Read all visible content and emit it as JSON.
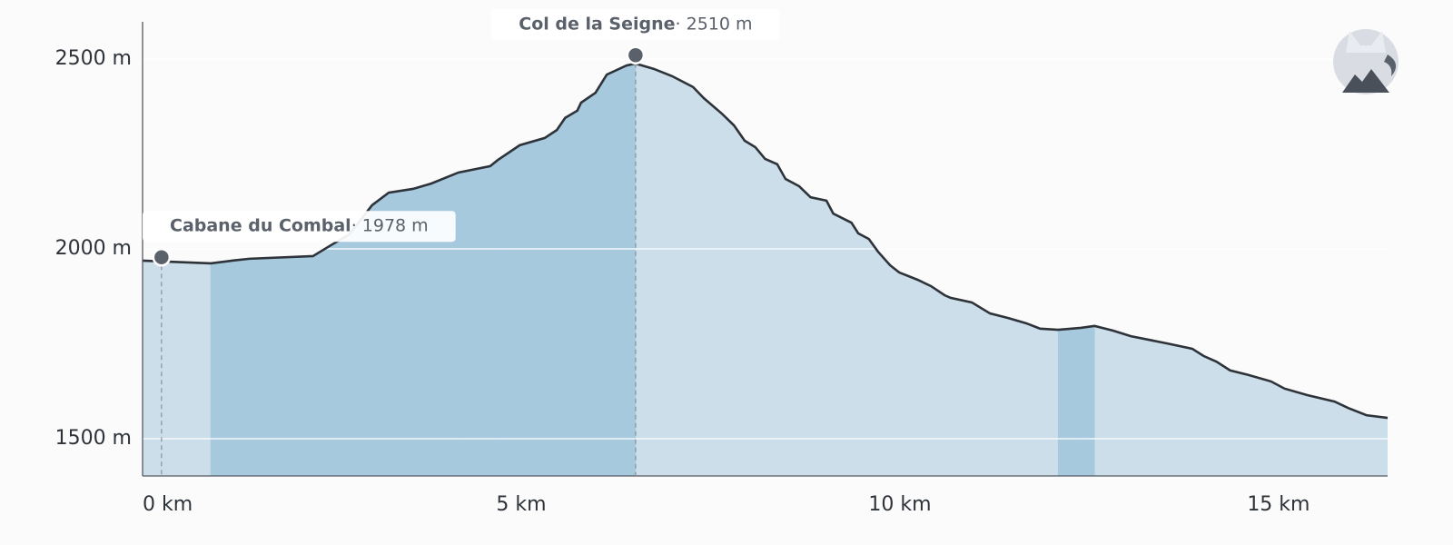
{
  "chart_data": {
    "type": "area",
    "x": [
      0,
      0.9,
      1.18,
      1.41,
      2.25,
      2.49,
      2.73,
      3.03,
      3.25,
      3.57,
      3.81,
      4.17,
      4.59,
      4.69,
      4.98,
      5.31,
      5.47,
      5.58,
      5.74,
      5.79,
      5.98,
      6.13,
      6.39,
      6.51,
      6.75,
      6.99,
      7.27,
      7.41,
      7.65,
      7.81,
      7.95,
      8.09,
      8.22,
      8.38,
      8.49,
      8.67,
      8.82,
      9.03,
      9.12,
      9.36,
      9.45,
      9.59,
      9.71,
      9.87,
      9.99,
      10.23,
      10.41,
      10.59,
      10.67,
      10.95,
      11.19,
      11.43,
      11.67,
      11.85,
      12.09,
      12.39,
      12.57,
      12.81,
      13.05,
      13.53,
      13.86,
      14.01,
      14.18,
      14.36,
      14.6,
      14.9,
      15.08,
      15.38,
      15.74,
      15.92,
      16.16,
      16.44
    ],
    "values": [
      1969,
      1962,
      1969,
      1974,
      1981,
      2010,
      2038,
      2115,
      2148,
      2158,
      2172,
      2201,
      2218,
      2234,
      2273,
      2292,
      2313,
      2345,
      2364,
      2385,
      2411,
      2459,
      2483,
      2488,
      2474,
      2455,
      2426,
      2397,
      2356,
      2325,
      2285,
      2268,
      2237,
      2223,
      2184,
      2165,
      2136,
      2127,
      2093,
      2069,
      2041,
      2026,
      1993,
      1957,
      1938,
      1919,
      1902,
      1878,
      1871,
      1859,
      1830,
      1818,
      1804,
      1790,
      1787,
      1792,
      1797,
      1785,
      1770,
      1751,
      1737,
      1718,
      1703,
      1680,
      1668,
      1651,
      1632,
      1615,
      1598,
      1581,
      1562,
      1555
    ],
    "color": "#2e333a",
    "fill_color": "#cbdeea",
    "ascent_color": "#a7c9de",
    "xlim": [
      0,
      16.44
    ],
    "ylim": [
      1402,
      2598
    ],
    "xticks": [
      {
        "value": 0,
        "label": "0 km"
      },
      {
        "value": 5,
        "label": "5 km"
      },
      {
        "value": 10,
        "label": "10 km"
      },
      {
        "value": 15,
        "label": "15 km"
      }
    ],
    "yticks": [
      {
        "value": 1500,
        "label": "1500 m"
      },
      {
        "value": 2000,
        "label": "2000 m"
      },
      {
        "value": 2500,
        "label": "2500 m"
      }
    ],
    "grid": true,
    "annotations": [
      {
        "name": "Cabane du Combal",
        "value_label": "· 1978 m",
        "x": 0.25,
        "y": 1978
      },
      {
        "name": "Col de la Seigne",
        "value_label": "· 2510 m",
        "x": 6.51,
        "y": 2510
      }
    ]
  }
}
